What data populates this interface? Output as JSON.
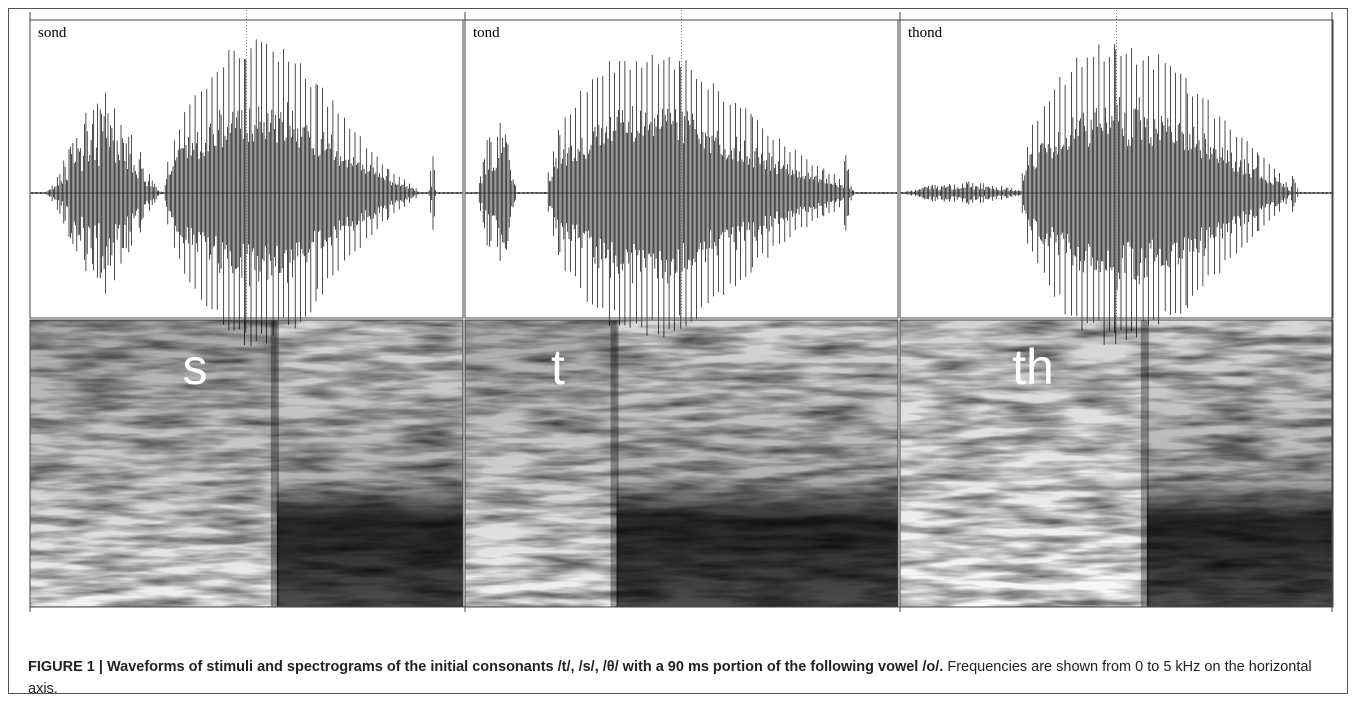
{
  "panels": [
    {
      "word": "sond",
      "consonant": "s"
    },
    {
      "word": "tond",
      "consonant": "t"
    },
    {
      "word": "thond",
      "consonant": "th"
    }
  ],
  "caption": {
    "title": "FIGURE 1 | Waveforms of stimuli and spectrograms of the initial consonants /t/, /s/, /θ/ with a 90 ms portion of the following vowel /o/.",
    "text": " Frequencies are shown from 0 to 5 kHz on the horizontal axis."
  }
}
